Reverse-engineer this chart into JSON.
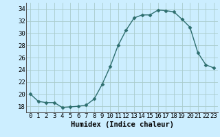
{
  "x": [
    0,
    1,
    2,
    3,
    4,
    5,
    6,
    7,
    8,
    9,
    10,
    11,
    12,
    13,
    14,
    15,
    16,
    17,
    18,
    19,
    20,
    21,
    22,
    23
  ],
  "y": [
    20.0,
    18.8,
    18.6,
    18.6,
    17.8,
    17.9,
    18.0,
    18.2,
    19.2,
    21.6,
    24.5,
    28.0,
    30.5,
    32.5,
    33.0,
    33.0,
    33.8,
    33.7,
    33.5,
    32.3,
    31.0,
    26.8,
    24.8,
    24.3
  ],
  "xlabel": "Humidex (Indice chaleur)",
  "ylim": [
    17,
    35
  ],
  "xlim": [
    -0.5,
    23.5
  ],
  "yticks": [
    18,
    20,
    22,
    24,
    26,
    28,
    30,
    32,
    34
  ],
  "xticks": [
    0,
    1,
    2,
    3,
    4,
    5,
    6,
    7,
    8,
    9,
    10,
    11,
    12,
    13,
    14,
    15,
    16,
    17,
    18,
    19,
    20,
    21,
    22,
    23
  ],
  "line_color": "#2d6e6e",
  "marker": "D",
  "marker_size": 2.5,
  "bg_color": "#cceeff",
  "grid_color": "#aacccc",
  "label_fontsize": 7.5,
  "tick_fontsize": 6.5
}
